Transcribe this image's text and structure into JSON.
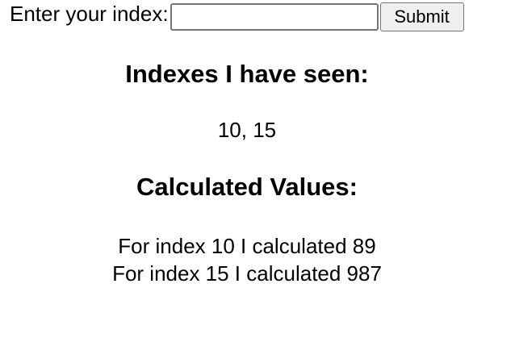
{
  "form": {
    "label": "Enter your index:",
    "input_value": "",
    "input_placeholder": "",
    "submit_label": "Submit"
  },
  "seen": {
    "title": "Indexes I have seen:",
    "values_text": "10, 15"
  },
  "calculated": {
    "title": "Calculated Values:",
    "items": [
      "For index 10 I calculated 89",
      "For index 15 I calculated 987"
    ]
  }
}
